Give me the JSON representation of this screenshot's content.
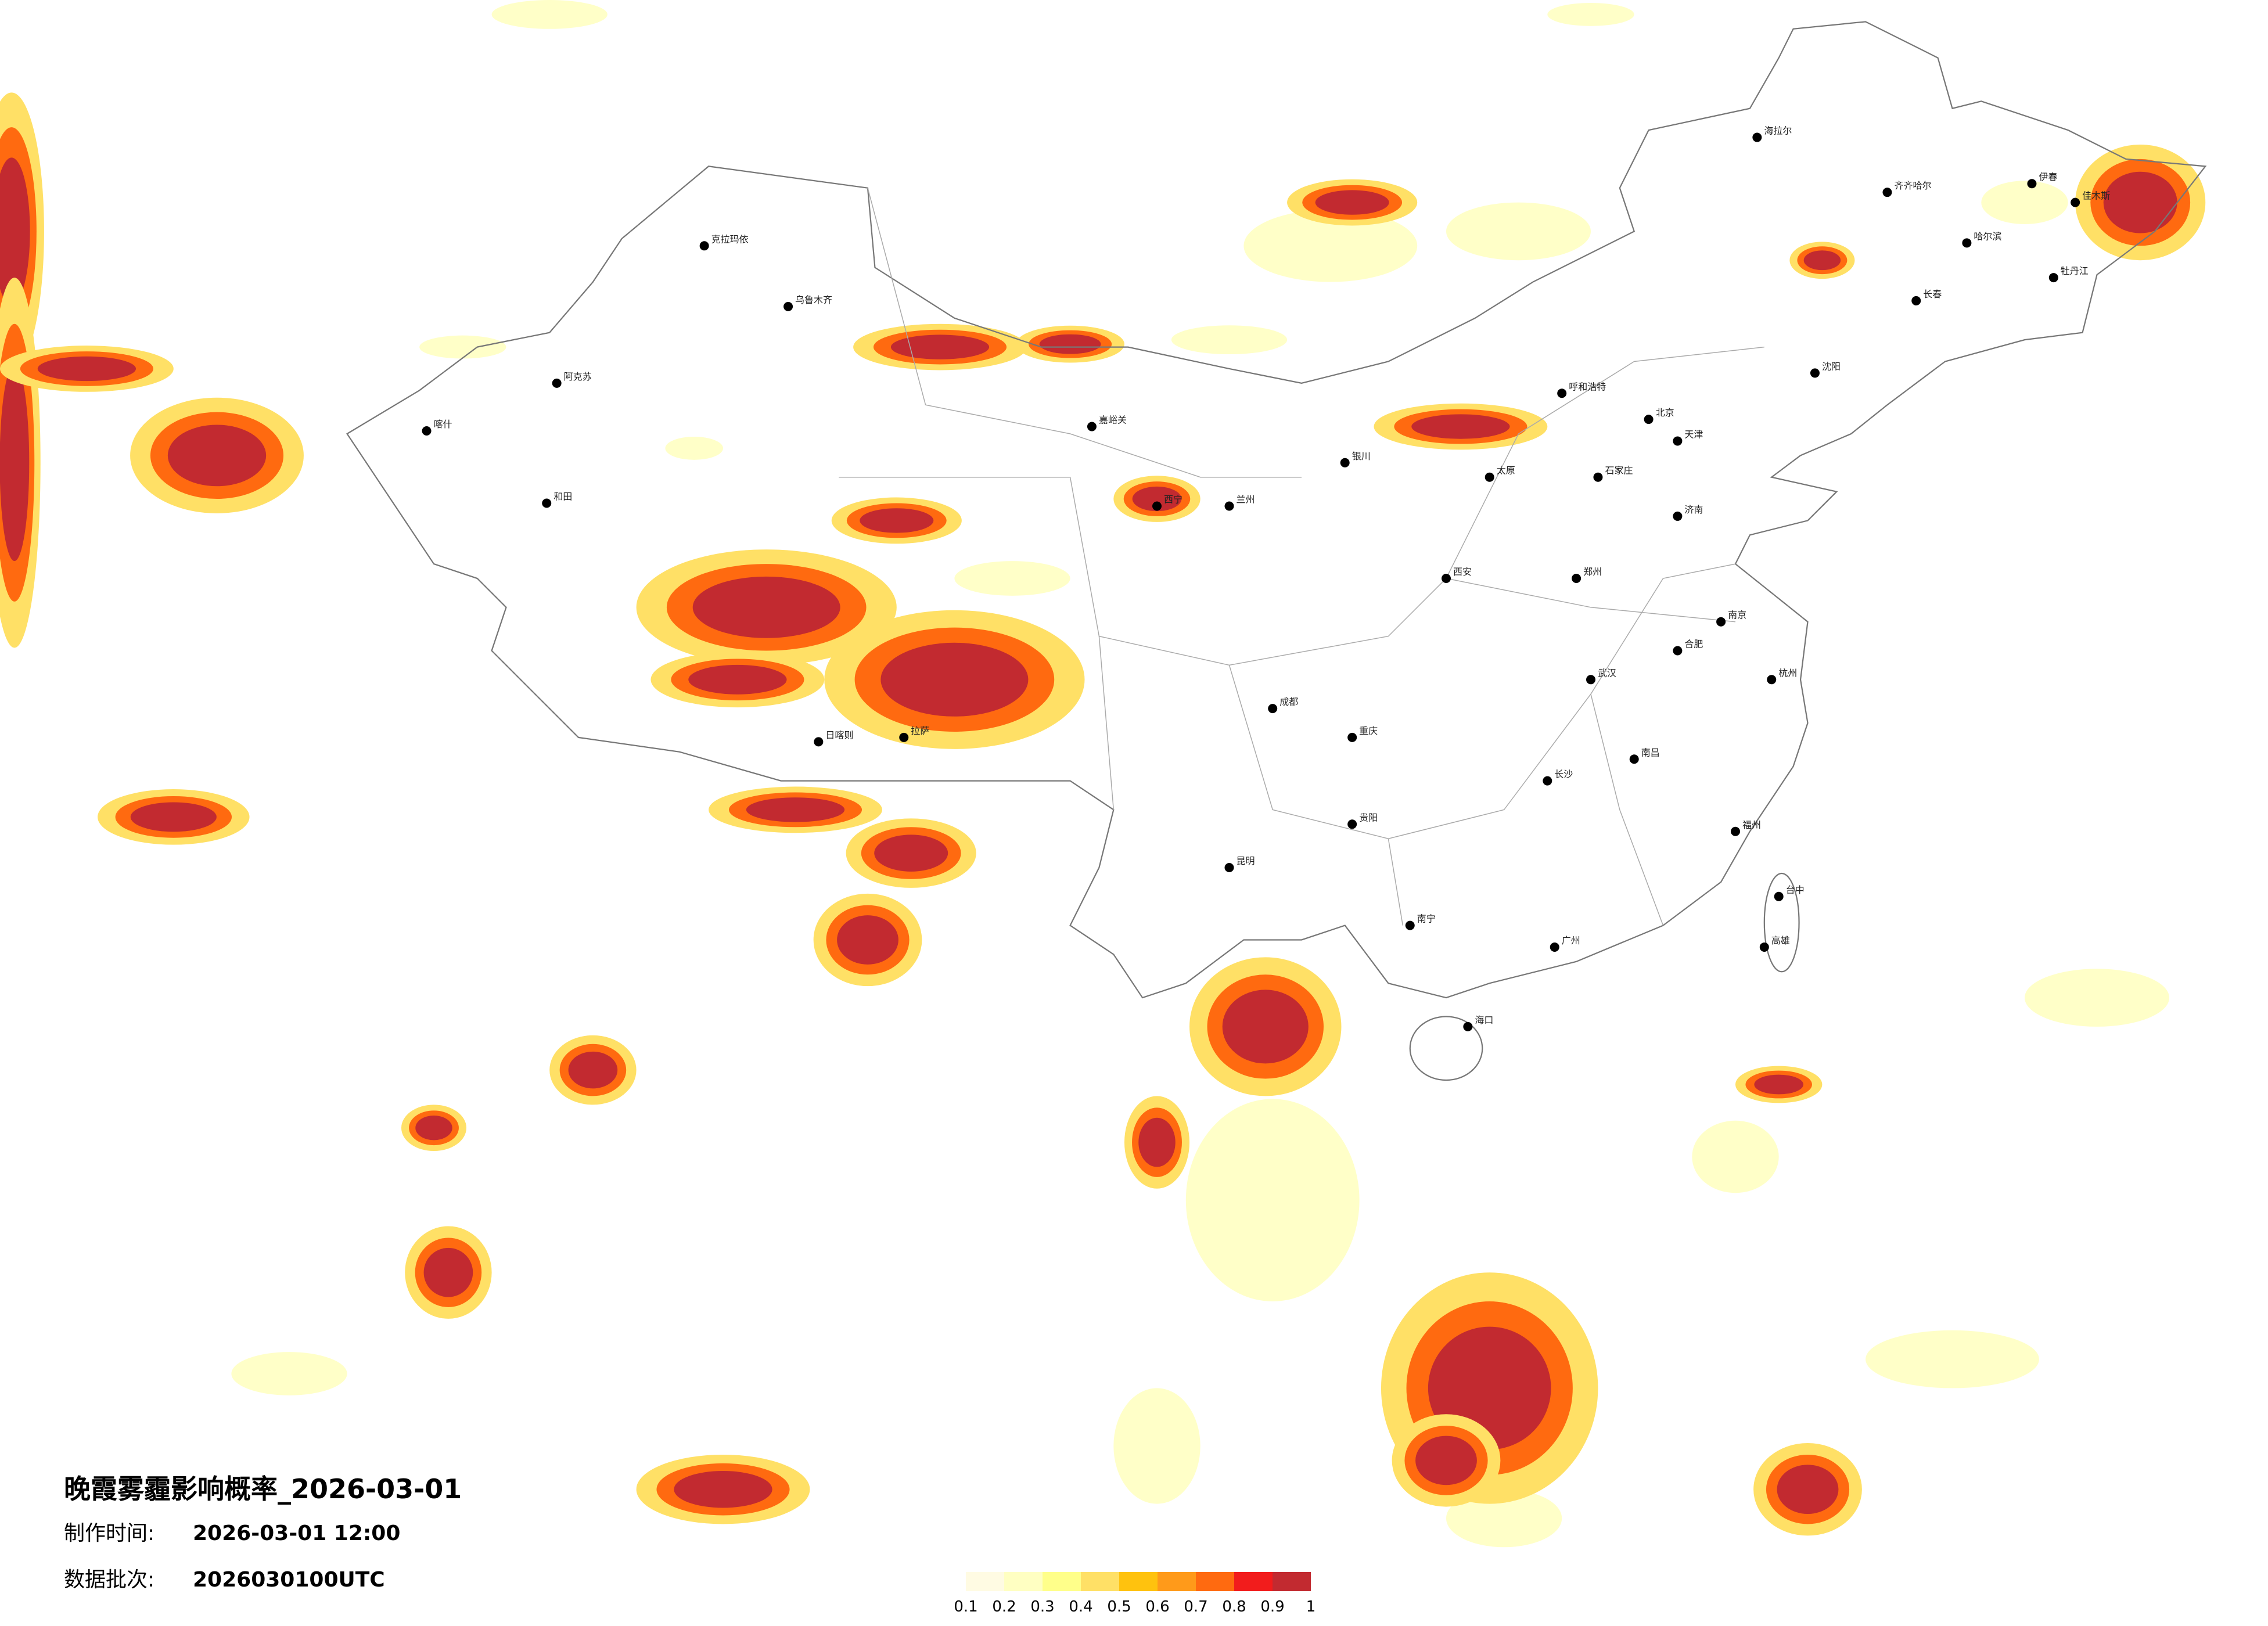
{
  "title": "晚霞雾霾影响概率_2026-03-01",
  "made_time": {
    "label": "制作时间:",
    "value": "2026-03-01 12:00"
  },
  "batch": {
    "label": "数据批次:",
    "value": "2026030100UTC"
  },
  "legend": {
    "colors": [
      "#fffbe3",
      "#ffffc2",
      "#ffff8a",
      "#ffe066",
      "#ffc20e",
      "#ff9a1a",
      "#ff6a10",
      "#f21c1c",
      "#c22a30"
    ],
    "ticks": [
      0.1,
      0.2,
      0.3,
      0.4,
      0.5,
      0.6,
      0.7,
      0.8,
      0.9,
      1
    ]
  },
  "cities": [
    "海拉尔",
    "齐齐哈尔",
    "哈尔滨",
    "伊春",
    "佳木斯",
    "牡丹江",
    "长春",
    "沈阳",
    "呼和浩特",
    "北京",
    "天津",
    "石家庄",
    "太原",
    "济南",
    "郑州",
    "西安",
    "银川",
    "兰州",
    "西宁",
    "嘉峪关",
    "克拉玛依",
    "乌鲁木齐",
    "阿克苏",
    "喀什",
    "和田",
    "拉萨",
    "日喀则",
    "成都",
    "重庆",
    "贵阳",
    "昆明",
    "南宁",
    "海口",
    "广州",
    "长沙",
    "武汉",
    "南昌",
    "福州",
    "合肥",
    "南京",
    "杭州",
    "台中",
    "高雄"
  ]
}
